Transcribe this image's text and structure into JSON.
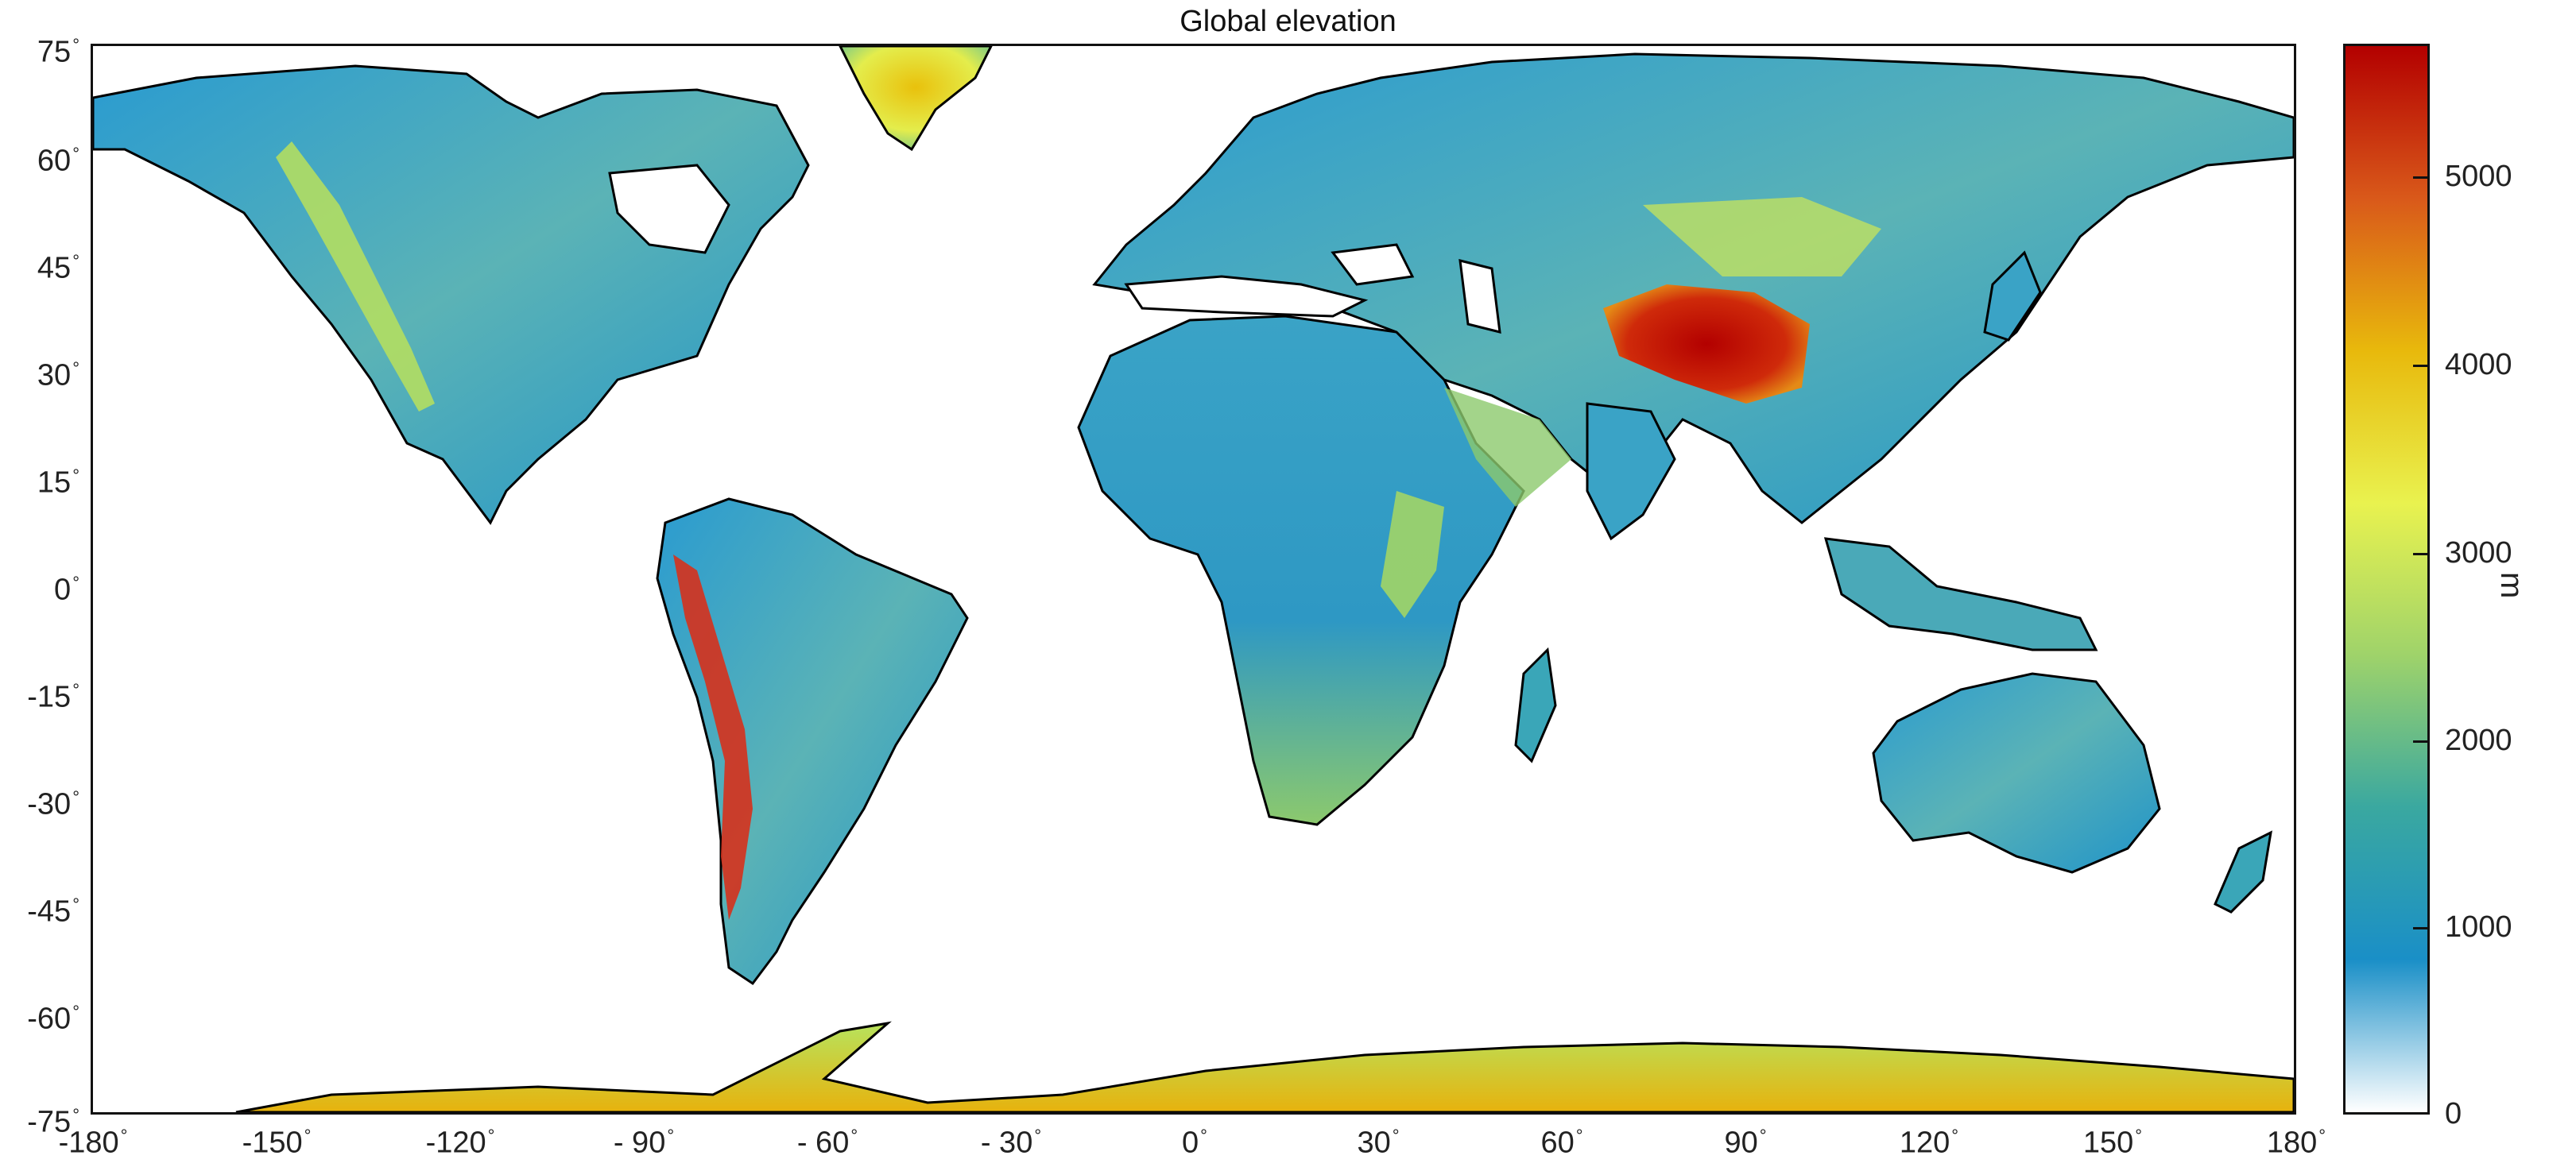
{
  "title": "Global elevation",
  "y_axis": {
    "ticks": [
      "75",
      "60",
      "45",
      "30",
      "15",
      "0",
      "-15",
      "-30",
      "-45",
      "-60",
      "-75"
    ]
  },
  "x_axis": {
    "ticks": [
      "-180",
      "-150",
      "-120",
      "- 90",
      "- 60",
      "- 30",
      "0",
      "30",
      "60",
      "90",
      "120",
      "150",
      "180"
    ]
  },
  "colorbar": {
    "label": "m",
    "ticks": [
      "5000",
      "4000",
      "3000",
      "2000",
      "1000",
      "0"
    ],
    "colors": [
      "#ffffff",
      "#1a8fc7",
      "#3aa8a0",
      "#9fd36a",
      "#e9f24f",
      "#e8b90c",
      "#d9591a",
      "#b30000"
    ]
  },
  "map": {
    "projection": "equirectangular",
    "lon_range": [
      -180,
      180
    ],
    "lat_range": [
      -75,
      75
    ],
    "ocean_color": "#ffffff",
    "coast_color": "#000000"
  }
}
